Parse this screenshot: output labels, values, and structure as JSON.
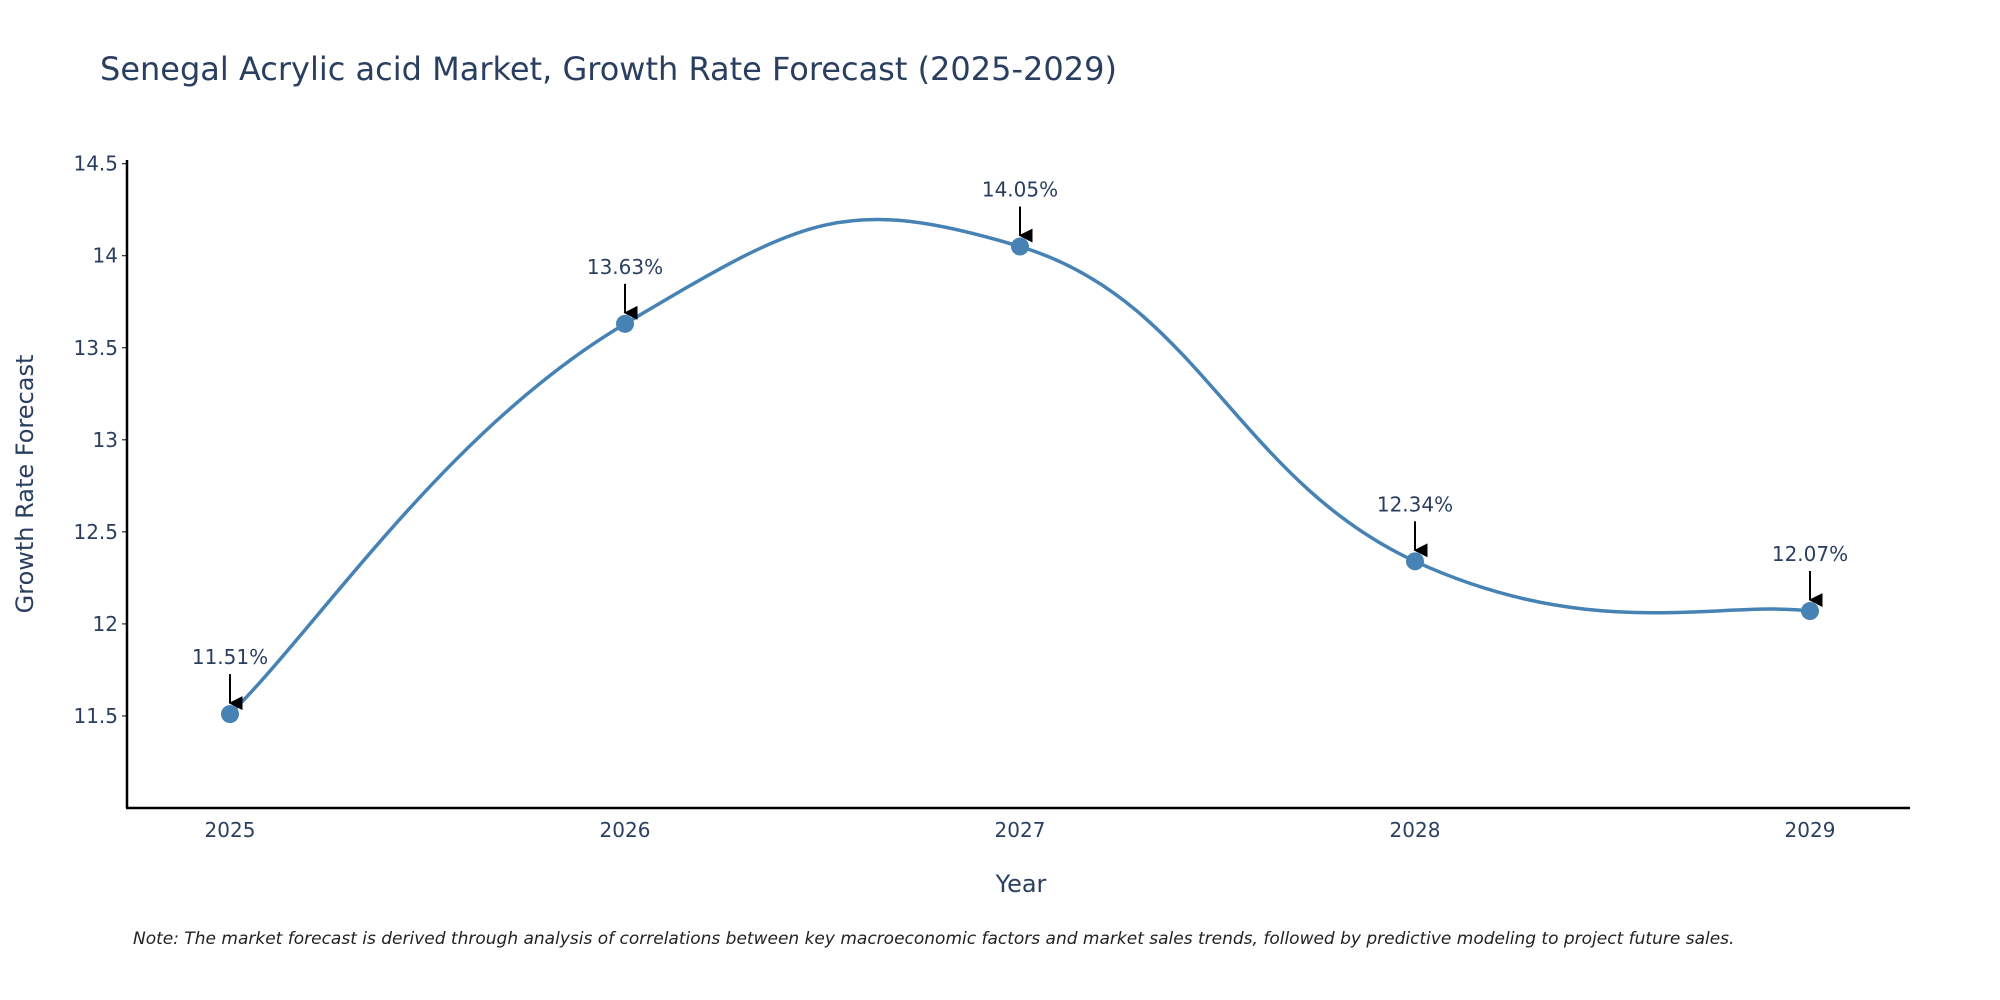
{
  "chart_data": {
    "type": "line",
    "title": "Senegal Acrylic acid Market, Growth Rate Forecast (2025-2029)",
    "xlabel": "Year",
    "ylabel": "Growth Rate Forecast",
    "categories": [
      "2025",
      "2026",
      "2027",
      "2028",
      "2029"
    ],
    "values": [
      11.51,
      13.63,
      14.05,
      12.34,
      12.07
    ],
    "data_labels": [
      "11.51%",
      "13.63%",
      "14.05%",
      "12.34%",
      "12.07%"
    ],
    "y_ticks": [
      11.5,
      12,
      12.5,
      13,
      13.5,
      14,
      14.5
    ],
    "y_tick_labels": [
      "11.5",
      "12",
      "12.5",
      "13",
      "13.5",
      "14",
      "14.5"
    ],
    "ylim": [
      11.0,
      14.52
    ],
    "grid": false,
    "legend": "none",
    "line_shape": "spline",
    "line_color": "#4682b4",
    "marker_color": "#4682b4",
    "arrow_color": "#000000",
    "axis_color": "#000000",
    "text_color": "#2a3f5f",
    "note": "Note: The market forecast is derived through analysis of correlations between key macroeconomic factors and market sales trends, followed by predictive modeling to project future sales."
  }
}
